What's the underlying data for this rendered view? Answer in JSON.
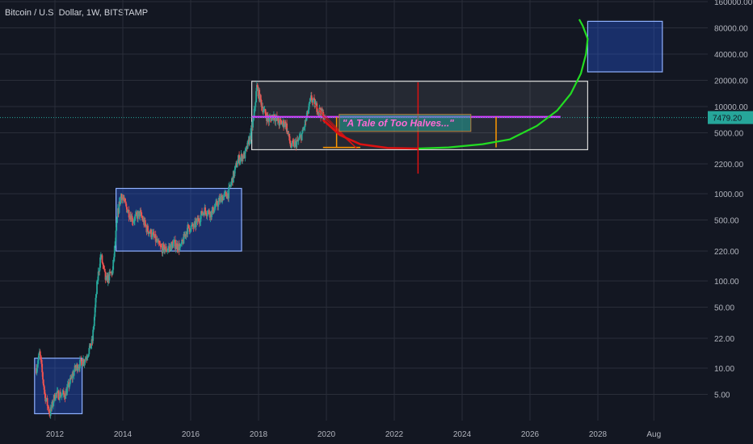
{
  "header": {
    "symbol_title": "Bitcoin / U.S. Dollar, 1W, BITSTAMP"
  },
  "colors": {
    "background": "#131722",
    "grid": "#2a2e39",
    "up": "#26a69a",
    "down": "#ef5350",
    "box_blue": "#2962ff",
    "box_white": "#ffffff",
    "curve_green": "#22dd22",
    "curve_red": "#dd1111",
    "magenta": "#d23cff",
    "orange": "#ff9800",
    "price_tag": "#26a69a"
  },
  "chart_data": {
    "type": "candlestick",
    "scale": "log",
    "y_ticks": [
      "160000.00",
      "80000.00",
      "40000.00",
      "20000.00",
      "10000.00",
      "5000.00",
      "2200.00",
      "1000.00",
      "500.00",
      "220.00",
      "100.00",
      "50.00",
      "22.00",
      "10.00",
      "5.00"
    ],
    "x_ticks": [
      "2012",
      "2014",
      "2016",
      "2018",
      "2020",
      "2022",
      "2024",
      "2026",
      "2028",
      "Aug"
    ],
    "current_price": "7479.20",
    "annotation_text": "\"A Tale of Too Halves...\"",
    "price_path": [
      [
        2011.45,
        10
      ],
      [
        2011.55,
        15
      ],
      [
        2011.7,
        5
      ],
      [
        2011.85,
        3
      ],
      [
        2012.0,
        5
      ],
      [
        2012.3,
        5
      ],
      [
        2012.6,
        10
      ],
      [
        2012.9,
        13
      ],
      [
        2013.1,
        20
      ],
      [
        2013.25,
        100
      ],
      [
        2013.35,
        200
      ],
      [
        2013.5,
        100
      ],
      [
        2013.7,
        130
      ],
      [
        2013.85,
        600
      ],
      [
        2013.95,
        1000
      ],
      [
        2014.1,
        700
      ],
      [
        2014.3,
        500
      ],
      [
        2014.5,
        600
      ],
      [
        2014.7,
        400
      ],
      [
        2014.9,
        330
      ],
      [
        2015.1,
        240
      ],
      [
        2015.3,
        230
      ],
      [
        2015.5,
        270
      ],
      [
        2015.7,
        240
      ],
      [
        2015.9,
        400
      ],
      [
        2016.1,
        420
      ],
      [
        2016.4,
        650
      ],
      [
        2016.6,
        600
      ],
      [
        2016.9,
        900
      ],
      [
        2017.1,
        1000
      ],
      [
        2017.4,
        2500
      ],
      [
        2017.6,
        2800
      ],
      [
        2017.75,
        4500
      ],
      [
        2017.85,
        7000
      ],
      [
        2017.95,
        17000
      ],
      [
        2018.05,
        12000
      ],
      [
        2018.15,
        9000
      ],
      [
        2018.3,
        7000
      ],
      [
        2018.45,
        8000
      ],
      [
        2018.6,
        6500
      ],
      [
        2018.8,
        6400
      ],
      [
        2018.95,
        3500
      ],
      [
        2019.15,
        3900
      ],
      [
        2019.3,
        5000
      ],
      [
        2019.45,
        8500
      ],
      [
        2019.55,
        12500
      ],
      [
        2019.7,
        10000
      ],
      [
        2019.85,
        8500
      ],
      [
        2019.95,
        7400
      ]
    ],
    "boxes": [
      {
        "x": [
          2011.4,
          2012.8
        ],
        "y": [
          3,
          13
        ],
        "color": "blue"
      },
      {
        "x": [
          2013.8,
          2017.5
        ],
        "y": [
          220,
          1150
        ],
        "color": "blue"
      },
      {
        "x": [
          2017.8,
          2027.7
        ],
        "y": [
          3200,
          19500
        ],
        "color": "white"
      },
      {
        "x": [
          2027.7,
          2029.9
        ],
        "y": [
          25000,
          95000
        ],
        "color": "blue"
      }
    ],
    "magenta_level": 7600,
    "vertical_marker": {
      "x": 2022.7,
      "y": [
        1700,
        19000
      ]
    },
    "orange_markers": [
      {
        "x": 2020.3,
        "y": [
          3400,
          7600
        ]
      },
      {
        "x": 2025.0,
        "y": [
          3400,
          7600
        ]
      }
    ],
    "red_curve": [
      [
        2019.9,
        7000
      ],
      [
        2020.4,
        4700
      ],
      [
        2021.0,
        3700
      ],
      [
        2021.8,
        3350
      ],
      [
        2022.7,
        3300
      ]
    ],
    "green_curve": [
      [
        2022.7,
        3300
      ],
      [
        2023.6,
        3400
      ],
      [
        2024.6,
        3700
      ],
      [
        2025.4,
        4200
      ],
      [
        2026.2,
        6000
      ],
      [
        2026.8,
        9000
      ],
      [
        2027.2,
        14000
      ],
      [
        2027.5,
        24000
      ],
      [
        2027.65,
        40000
      ],
      [
        2027.7,
        60000
      ],
      [
        2027.55,
        85000
      ],
      [
        2027.45,
        100000
      ]
    ]
  }
}
